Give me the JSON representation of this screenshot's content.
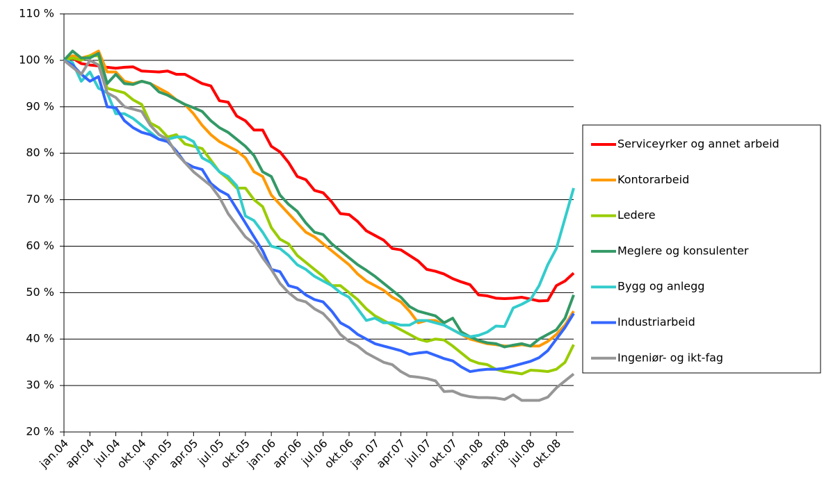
{
  "chart_data": {
    "type": "line",
    "categories": [
      "jan.04",
      null,
      null,
      "apr.04",
      null,
      null,
      "jul.04",
      null,
      null,
      "okt.04",
      null,
      null,
      "jan.05",
      null,
      null,
      "apr.05",
      null,
      null,
      "jul.05",
      null,
      null,
      "okt.05",
      null,
      null,
      "jan.06",
      null,
      null,
      "apr.06",
      null,
      null,
      "jul.06",
      null,
      null,
      "okt.06",
      null,
      null,
      "jan.07",
      null,
      null,
      "apr.07",
      null,
      null,
      "jul.07",
      null,
      null,
      "okt.07",
      null,
      null,
      "jan.08",
      null,
      null,
      "apr.08",
      null,
      null,
      "jul.08",
      null,
      null,
      "okt.08",
      null,
      null
    ],
    "ylim": [
      20,
      110
    ],
    "yticks": [
      {
        "value": 20,
        "label": "20 %"
      },
      {
        "value": 30,
        "label": "30 %"
      },
      {
        "value": 40,
        "label": "40 %"
      },
      {
        "value": 50,
        "label": "50 %"
      },
      {
        "value": 60,
        "label": "60 %"
      },
      {
        "value": 70,
        "label": "70 %"
      },
      {
        "value": 80,
        "label": "80 %"
      },
      {
        "value": 90,
        "label": "90 %"
      },
      {
        "value": 100,
        "label": "100 %"
      },
      {
        "value": 110,
        "label": "110 %"
      }
    ],
    "grid": true,
    "legend": "right",
    "series": [
      {
        "name": "Serviceyrker og annet arbeid",
        "color": "#ff0000",
        "values": [
          100,
          100.5,
          99.3,
          99,
          98.8,
          98.5,
          98.3,
          98.5,
          98.6,
          97.7,
          97.6,
          97.5,
          97.7,
          97,
          97,
          96,
          95,
          94.5,
          91.3,
          91,
          88,
          87,
          85,
          85,
          81.5,
          80.3,
          78,
          75,
          74.3,
          72,
          71.5,
          69.5,
          67,
          66.8,
          65.3,
          63.3,
          62.3,
          61.3,
          59.5,
          59.2,
          58,
          56.8,
          55,
          54.6,
          54,
          53,
          52.3,
          51.7,
          49.5,
          49.3,
          48.8,
          48.7,
          48.8,
          49,
          48.6,
          48.2,
          48.3,
          51.5,
          52.5,
          54.2
        ]
      },
      {
        "name": "Kontorarbeid",
        "color": "#ff9900",
        "values": [
          100,
          101,
          100.5,
          101,
          102,
          97.5,
          97.5,
          95.5,
          95,
          95.5,
          95,
          94,
          93,
          91.5,
          90.5,
          88.5,
          86,
          84,
          82.5,
          81.5,
          80.5,
          79,
          76,
          75,
          71,
          69,
          67,
          65,
          63,
          62,
          60.5,
          59,
          57.5,
          56,
          54,
          52.5,
          51.5,
          50.5,
          49,
          48,
          46,
          43.5,
          44,
          44,
          43,
          42,
          41,
          40,
          39.5,
          39,
          38.8,
          38.5,
          38.5,
          38.8,
          38.5,
          38.5,
          39.5,
          41,
          43,
          46
        ]
      },
      {
        "name": "Ledere",
        "color": "#99cc00",
        "values": [
          100,
          100.5,
          100,
          101,
          101,
          94,
          93.5,
          93,
          91.5,
          90.5,
          86.5,
          85.5,
          83.5,
          84,
          82,
          81.5,
          81,
          78.5,
          76,
          74.5,
          72.5,
          72.5,
          70,
          68.5,
          64,
          61.5,
          60.5,
          58,
          56.5,
          55,
          53.5,
          51.5,
          51.5,
          50,
          48.5,
          46.5,
          45,
          44,
          43,
          42,
          41,
          40,
          39.5,
          40,
          39.8,
          38.5,
          37,
          35.5,
          34.8,
          34.5,
          33.5,
          33,
          32.8,
          32.5,
          33.3,
          33.2,
          33,
          33.5,
          35,
          38.8
        ]
      },
      {
        "name": "Meglere og konsulenter",
        "color": "#339966",
        "values": [
          100,
          102,
          100.5,
          100.5,
          101.5,
          95,
          97,
          95,
          94.8,
          95.5,
          95,
          93.2,
          92.5,
          91.5,
          90.5,
          89.8,
          89,
          87,
          85.5,
          84.5,
          83,
          81.5,
          79.5,
          76,
          75,
          71,
          69,
          67.5,
          65,
          63,
          62.5,
          60.5,
          59,
          57.5,
          56,
          54.8,
          53.5,
          52,
          50.5,
          49,
          47,
          46,
          45.5,
          45,
          43.5,
          44.5,
          41.5,
          40.5,
          39.7,
          39.2,
          39,
          38.3,
          38.7,
          39,
          38.5,
          40,
          41,
          42,
          44.5,
          49.5
        ]
      },
      {
        "name": "Bygg og anlegg",
        "color": "#33cccc",
        "values": [
          100,
          99.5,
          95.5,
          97.5,
          94,
          93,
          88.5,
          88.5,
          87.5,
          86,
          84.5,
          83,
          83,
          83.5,
          83.5,
          82.5,
          79,
          78,
          76,
          75,
          73,
          66.5,
          65.5,
          63,
          60,
          59.5,
          58,
          56,
          55,
          53.5,
          52.5,
          51.5,
          50,
          49,
          46.5,
          44,
          44.5,
          43.5,
          43.5,
          43,
          43,
          44,
          44,
          43.5,
          43,
          42,
          41,
          40.5,
          40.8,
          41.5,
          42.8,
          42.7,
          46.7,
          47.5,
          48.5,
          51.5,
          56,
          59.5,
          66,
          72.5
        ]
      },
      {
        "name": "Industriarbeid",
        "color": "#3366ff",
        "values": [
          100,
          99,
          97,
          95.5,
          96.5,
          90,
          89.8,
          87,
          85.5,
          84.5,
          84,
          83,
          82.5,
          80.5,
          78,
          77,
          76.5,
          73.5,
          72,
          71,
          68,
          65,
          62,
          59,
          55,
          54.5,
          51.5,
          51,
          49.5,
          48.5,
          48,
          46,
          43.5,
          42.5,
          41,
          40,
          39,
          38.5,
          38,
          37.5,
          36.7,
          37,
          37.2,
          36.5,
          35.8,
          35.3,
          34,
          33,
          33.3,
          33.5,
          33.5,
          33.7,
          34.2,
          34.7,
          35.2,
          36,
          37.5,
          40,
          42.5,
          45.5
        ]
      },
      {
        "name": "Ingeniør- og ikt-fag",
        "color": "#969696",
        "values": [
          100,
          98.5,
          97,
          100,
          99,
          93,
          92,
          90,
          89.5,
          89,
          86,
          84,
          83,
          80,
          78,
          76,
          74.5,
          73,
          70.5,
          67,
          64.5,
          62,
          60.5,
          57.5,
          55,
          52,
          50,
          48.5,
          48,
          46.5,
          45.5,
          43.5,
          41,
          39.5,
          38.5,
          37,
          36,
          35,
          34.5,
          33,
          32,
          31.8,
          31.5,
          31,
          28.7,
          28.8,
          28,
          27.6,
          27.4,
          27.4,
          27.3,
          27,
          28,
          26.8,
          26.8,
          26.8,
          27.5,
          29.5,
          31,
          32.5
        ]
      }
    ]
  }
}
